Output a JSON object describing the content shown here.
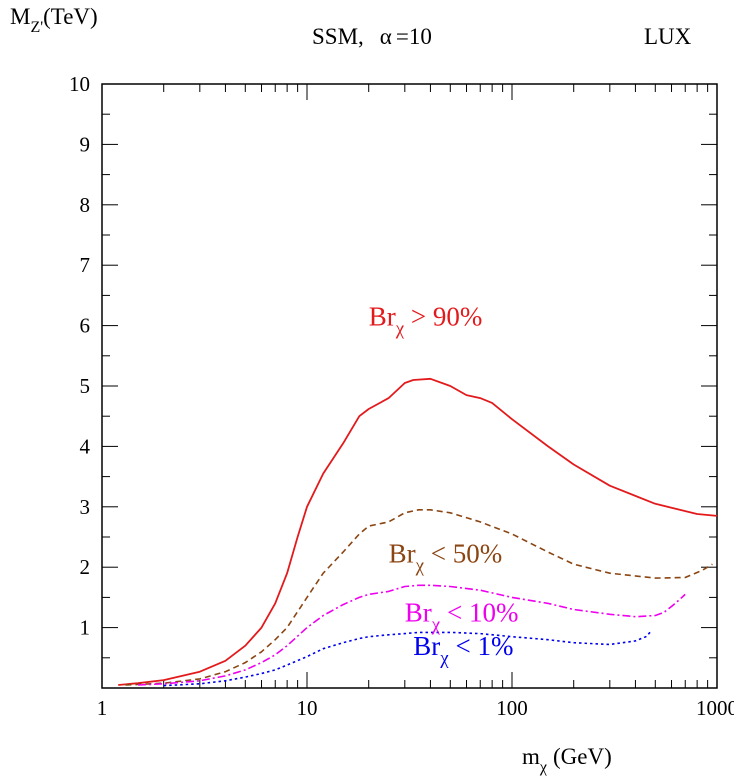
{
  "header": {
    "left": "SSM,",
    "alpha_symbol": "α",
    "alpha_value": "=10",
    "right": "LUX"
  },
  "chart_data": {
    "type": "line",
    "title": "SSM, α =10",
    "xlabel": {
      "main": "m",
      "sub": "χ",
      "unit": "(GeV)"
    },
    "ylabel": {
      "main": "M",
      "sub": "Z'",
      "unit": "(TeV)"
    },
    "xscale": "log",
    "xlim": [
      1,
      1000
    ],
    "ylim": [
      0,
      10
    ],
    "xticks": [
      1,
      10,
      100,
      1000
    ],
    "xtick_labels": [
      "1",
      "10",
      "100",
      "1000"
    ],
    "yticks": [
      1,
      2,
      3,
      4,
      5,
      6,
      7,
      8,
      9,
      10
    ],
    "ytick_labels": [
      "1",
      "2",
      "3",
      "4",
      "5",
      "6",
      "7",
      "8",
      "9",
      "10"
    ],
    "grid": false,
    "series": [
      {
        "name": "Br_χ > 90%",
        "color": "#e31a1c",
        "dash": "solid",
        "x": [
          1.2,
          1.5,
          2,
          3,
          4,
          5,
          6,
          7,
          8,
          9,
          10,
          12,
          15,
          18,
          20,
          25,
          30,
          33,
          40,
          50,
          60,
          70,
          80,
          100,
          150,
          200,
          300,
          500,
          800,
          1000
        ],
        "y": [
          0.05,
          0.08,
          0.13,
          0.27,
          0.45,
          0.7,
          1.0,
          1.4,
          1.9,
          2.5,
          3.0,
          3.55,
          4.05,
          4.5,
          4.62,
          4.8,
          5.05,
          5.1,
          5.12,
          5.0,
          4.85,
          4.8,
          4.72,
          4.45,
          4.0,
          3.7,
          3.35,
          3.05,
          2.88,
          2.85
        ]
      },
      {
        "name": "Br_χ < 50%",
        "color": "#8b4513",
        "dash": "dashed",
        "x": [
          1.3,
          2,
          3,
          4,
          5,
          6,
          7,
          8,
          10,
          12,
          15,
          18,
          20,
          25,
          30,
          35,
          40,
          50,
          70,
          100,
          150,
          200,
          300,
          500,
          700,
          850,
          950
        ],
        "y": [
          0.05,
          0.08,
          0.15,
          0.27,
          0.42,
          0.6,
          0.8,
          1.0,
          1.5,
          1.9,
          2.25,
          2.55,
          2.68,
          2.75,
          2.9,
          2.95,
          2.95,
          2.9,
          2.75,
          2.55,
          2.25,
          2.05,
          1.9,
          1.82,
          1.83,
          1.95,
          2.05
        ]
      },
      {
        "name": "Br_χ < 10%",
        "color": "#ee00ee",
        "dash": "dashdot",
        "x": [
          1.5,
          2,
          3,
          4,
          5,
          6,
          7,
          8,
          10,
          12,
          15,
          18,
          20,
          25,
          30,
          35,
          40,
          50,
          70,
          100,
          150,
          200,
          300,
          400,
          500,
          550,
          600,
          650,
          700
        ],
        "y": [
          0.05,
          0.07,
          0.12,
          0.2,
          0.3,
          0.42,
          0.55,
          0.7,
          1.0,
          1.2,
          1.38,
          1.5,
          1.55,
          1.6,
          1.68,
          1.7,
          1.7,
          1.68,
          1.62,
          1.5,
          1.4,
          1.3,
          1.22,
          1.18,
          1.2,
          1.25,
          1.35,
          1.45,
          1.55
        ]
      },
      {
        "name": "Br_χ < 1%",
        "color": "#0000ee",
        "dash": "dotted",
        "x": [
          2,
          3,
          4,
          5,
          6,
          7,
          8,
          10,
          12,
          15,
          18,
          20,
          25,
          30,
          35,
          40,
          50,
          70,
          100,
          150,
          200,
          300,
          400,
          450,
          480
        ],
        "y": [
          0.04,
          0.07,
          0.12,
          0.18,
          0.24,
          0.3,
          0.38,
          0.52,
          0.65,
          0.75,
          0.82,
          0.85,
          0.88,
          0.9,
          0.92,
          0.92,
          0.92,
          0.9,
          0.85,
          0.8,
          0.75,
          0.72,
          0.78,
          0.85,
          0.95
        ]
      }
    ],
    "annotations": [
      {
        "main": "Br",
        "sub": "χ",
        "rest": " > 90%",
        "color": "#e31a1c",
        "x": 20,
        "y": 6.0
      },
      {
        "main": "Br",
        "sub": "χ",
        "rest": " < 50%",
        "color": "#8b4513",
        "x": 25,
        "y": 2.08
      },
      {
        "main": "Br",
        "sub": "χ",
        "rest": " < 10%",
        "color": "#ee00ee",
        "x": 30,
        "y": 1.1
      },
      {
        "main": "Br",
        "sub": "χ",
        "rest": " < 1%",
        "color": "#0000ee",
        "x": 33,
        "y": 0.55
      }
    ]
  }
}
